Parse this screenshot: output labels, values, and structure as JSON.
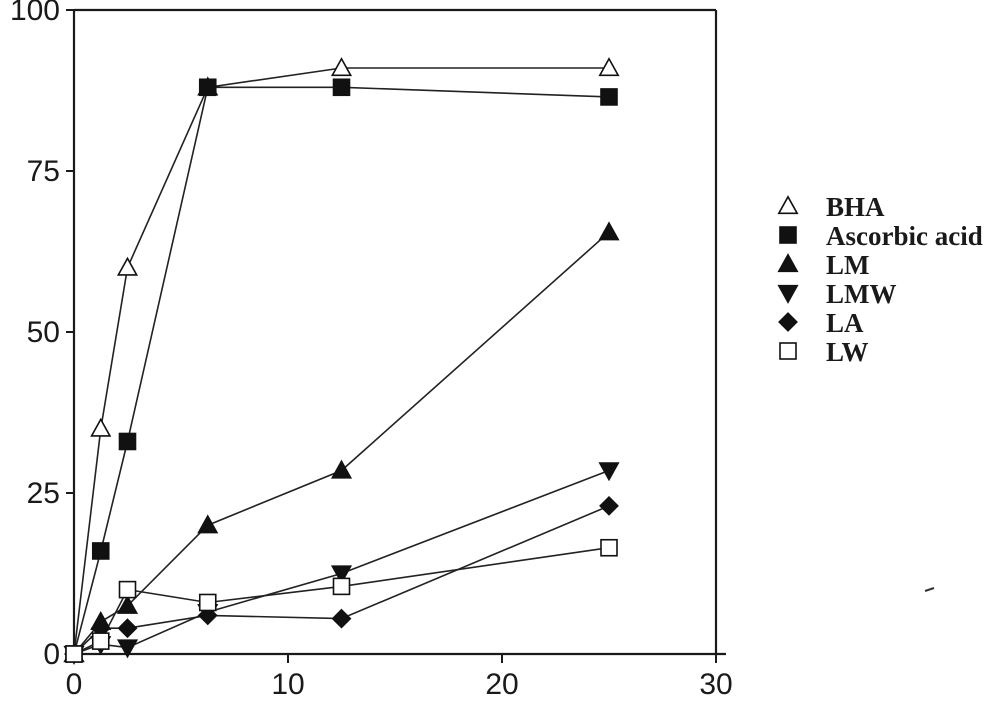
{
  "chart_data": {
    "type": "line",
    "title": "",
    "xlabel": "",
    "ylabel": "",
    "xlim": [
      0,
      30
    ],
    "ylim": [
      0,
      100
    ],
    "xticks": [
      0,
      10,
      20,
      30
    ],
    "yticks": [
      0,
      25,
      50,
      75,
      100
    ],
    "grid": false,
    "legend_position": "right",
    "series": [
      {
        "name": "BHA",
        "marker": "triangle-up-open",
        "x": [
          0,
          1.25,
          2.5,
          6.25,
          12.5,
          25
        ],
        "y": [
          0,
          35,
          60,
          88,
          91,
          91
        ]
      },
      {
        "name": "Ascorbic acid",
        "marker": "square-filled",
        "x": [
          0,
          1.25,
          2.5,
          6.25,
          12.5,
          25
        ],
        "y": [
          0,
          16,
          33,
          88,
          88,
          86.5
        ]
      },
      {
        "name": "LM",
        "marker": "triangle-up-filled",
        "x": [
          0,
          1.25,
          2.5,
          6.25,
          12.5,
          25
        ],
        "y": [
          0,
          5,
          7.5,
          20,
          28.5,
          65.5
        ]
      },
      {
        "name": "LMW",
        "marker": "triangle-down-filled",
        "x": [
          0,
          1.25,
          2.5,
          6.25,
          12.5,
          25
        ],
        "y": [
          0,
          1.5,
          1,
          6.5,
          12.5,
          28.5
        ]
      },
      {
        "name": "LA",
        "marker": "diamond-filled",
        "x": [
          0,
          1.25,
          2.5,
          6.25,
          12.5,
          25
        ],
        "y": [
          0,
          4,
          4,
          6,
          5.5,
          23
        ]
      },
      {
        "name": "LW",
        "marker": "square-open",
        "x": [
          0,
          1.25,
          2.5,
          6.25,
          12.5,
          25
        ],
        "y": [
          0,
          2,
          10,
          8,
          10.5,
          16.5
        ]
      }
    ]
  }
}
